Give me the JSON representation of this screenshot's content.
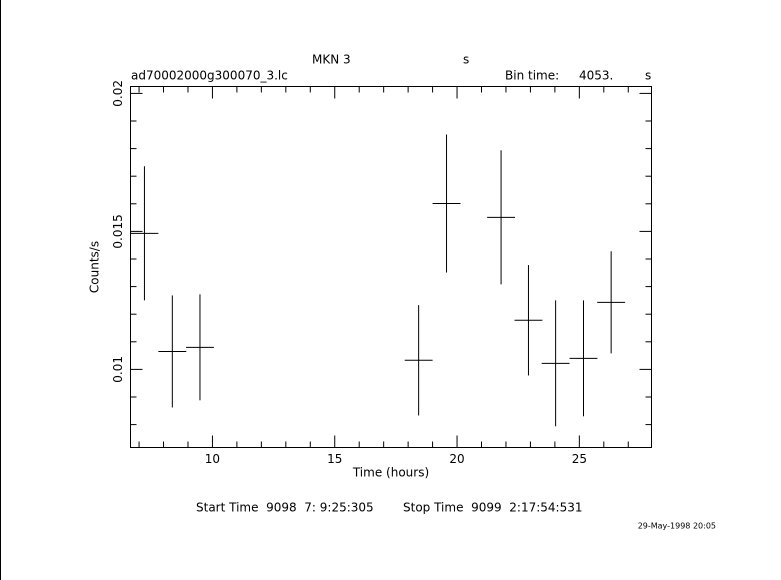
{
  "chart_data": {
    "type": "errorbar",
    "title": "MKN 3",
    "title_unit": "s",
    "file_name": "ad70002000g300070_3.lc",
    "bin_time_label": "Bin time:",
    "bin_time": "4053.",
    "bin_time_unit": "s",
    "xlabel": "Time (hours)",
    "ylabel": "Counts/s",
    "start_time": "Start Time  9098  7: 9:25:305",
    "stop_time": "Stop Time  9099  2:17:54:531",
    "timestamp": "29-May-1998 20:05",
    "color": "#000000",
    "x": [
      7.22,
      8.36,
      9.49,
      18.43,
      19.57,
      21.8,
      22.92,
      24.03,
      25.17,
      26.3
    ],
    "xerr": [
      0.57,
      0.57,
      0.57,
      0.57,
      0.57,
      0.57,
      0.57,
      0.57,
      0.57,
      0.57
    ],
    "values": [
      0.01493,
      0.01065,
      0.0108,
      0.01033,
      0.01601,
      0.01551,
      0.01178,
      0.01022,
      0.0104,
      0.01243
    ],
    "yerr": [
      0.00243,
      0.00203,
      0.00192,
      0.002,
      0.0025,
      0.00243,
      0.002,
      0.00228,
      0.0021,
      0.00185
    ],
    "xlim": [
      6.65,
      27.95
    ],
    "ylim": [
      0.00717,
      0.02025
    ],
    "xticks": [
      10,
      15,
      20,
      25
    ],
    "yticks": [
      0.01,
      0.015,
      0.02
    ],
    "xminor_ticks": [
      7,
      8,
      9,
      11,
      12,
      13,
      14,
      16,
      17,
      18,
      19,
      21,
      22,
      23,
      24,
      26,
      27
    ],
    "yminor_ticks": [
      0.008,
      0.009,
      0.011,
      0.012,
      0.013,
      0.014,
      0.016,
      0.017,
      0.018,
      0.019
    ]
  }
}
